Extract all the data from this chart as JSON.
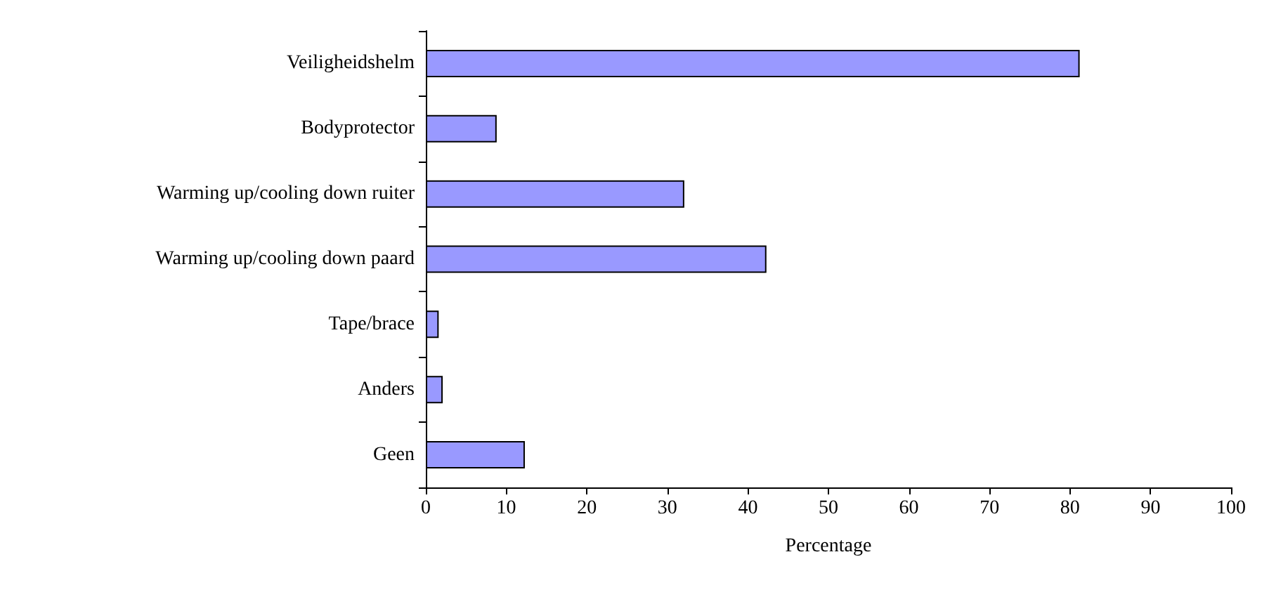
{
  "chart_data": {
    "type": "bar",
    "orientation": "horizontal",
    "xlabel": "Percentage",
    "categories": [
      "Veiligheidshelm",
      "Bodyprotector",
      "Warming up/cooling down ruiter",
      "Warming up/cooling down paard",
      "Tape/brace",
      "Anders",
      "Geen"
    ],
    "values": [
      81.2,
      8.8,
      32.1,
      42.3,
      1.6,
      2.1,
      12.3
    ],
    "color": "#9999ff",
    "xlim": [
      0,
      100
    ],
    "xticks": [
      0,
      10,
      20,
      30,
      40,
      50,
      60,
      70,
      80,
      90,
      100
    ],
    "grid": false
  }
}
